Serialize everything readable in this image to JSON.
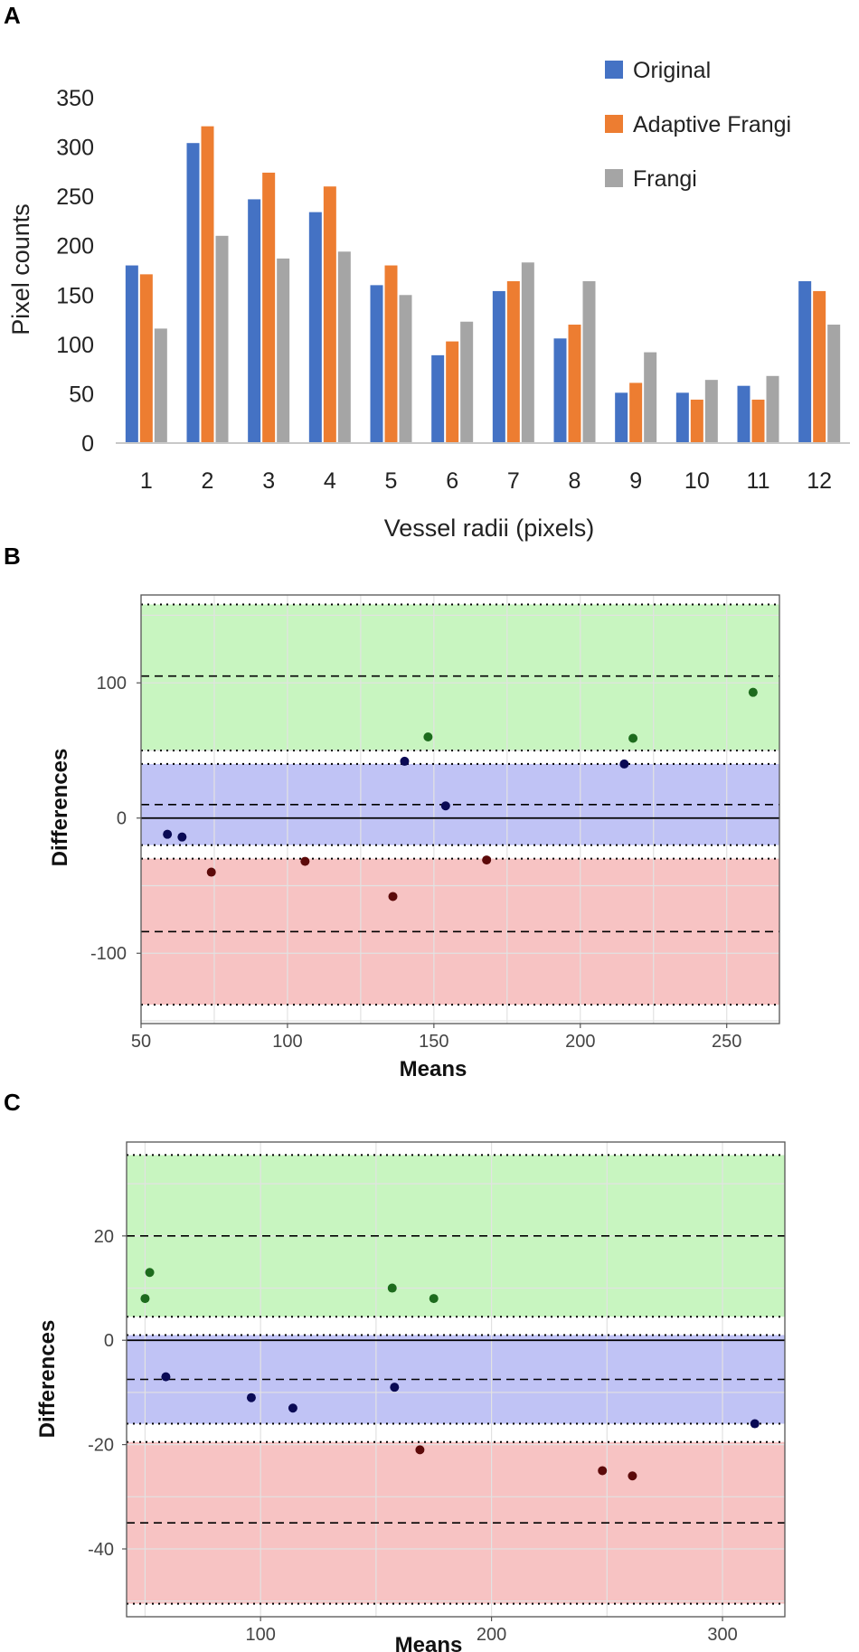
{
  "chart_data": [
    {
      "panel": "A",
      "type": "bar",
      "title": "",
      "xlabel": "Vessel radii (pixels)",
      "ylabel": "Pixel counts",
      "categories": [
        "1",
        "2",
        "3",
        "4",
        "5",
        "6",
        "7",
        "8",
        "9",
        "10",
        "11",
        "12"
      ],
      "ylim": [
        0,
        350
      ],
      "yticks": [
        0,
        50,
        100,
        150,
        200,
        250,
        300,
        350
      ],
      "grid": false,
      "legend_position": "top-right",
      "series": [
        {
          "name": "Original",
          "color": "#4472C4",
          "values": [
            180,
            304,
            247,
            234,
            160,
            89,
            154,
            106,
            51,
            51,
            58,
            164
          ]
        },
        {
          "name": "Adaptive Frangi",
          "color": "#ED7D31",
          "values": [
            171,
            321,
            274,
            260,
            180,
            103,
            164,
            120,
            61,
            44,
            44,
            154
          ]
        },
        {
          "name": "Frangi",
          "color": "#A5A5A5",
          "values": [
            116,
            210,
            187,
            194,
            150,
            123,
            183,
            164,
            92,
            64,
            68,
            120
          ]
        }
      ]
    },
    {
      "panel": "B",
      "type": "scatter",
      "title": "",
      "xlabel": "Means",
      "ylabel": "Differences",
      "xlim": [
        50,
        268
      ],
      "ylim": [
        -152,
        165
      ],
      "xticks": [
        50,
        100,
        150,
        200,
        250
      ],
      "yticks": [
        -100,
        0,
        100
      ],
      "grid": true,
      "bands": [
        {
          "name": "upper",
          "color": "#c8f5c0",
          "from": 50,
          "to": 158,
          "center": 105
        },
        {
          "name": "middle",
          "color": "#c0c3f5",
          "from": -20,
          "to": 40,
          "center": 10
        },
        {
          "name": "lower",
          "color": "#f7c3c3",
          "from": -138,
          "to": -30,
          "center": -84
        }
      ],
      "zero_line": 0,
      "series": [
        {
          "name": "upper",
          "color": "#1d6b1d",
          "points": [
            [
              148,
              60
            ],
            [
              218,
              59
            ],
            [
              259,
              93
            ]
          ]
        },
        {
          "name": "middle",
          "color": "#0a0a55",
          "points": [
            [
              59,
              -12
            ],
            [
              64,
              -14
            ],
            [
              140,
              42
            ],
            [
              154,
              9
            ],
            [
              215,
              40
            ]
          ]
        },
        {
          "name": "lower",
          "color": "#5c0a0a",
          "points": [
            [
              74,
              -40
            ],
            [
              106,
              -32
            ],
            [
              136,
              -58
            ],
            [
              168,
              -31
            ]
          ]
        }
      ]
    },
    {
      "panel": "C",
      "type": "scatter",
      "title": "",
      "xlabel": "Means",
      "ylabel": "Differences",
      "xlim": [
        42,
        327
      ],
      "ylim": [
        -53,
        38
      ],
      "xticks": [
        100,
        200,
        300
      ],
      "yticks": [
        -40,
        -20,
        0,
        20
      ],
      "grid": true,
      "bands": [
        {
          "name": "upper",
          "color": "#c8f5c0",
          "from": 4.5,
          "to": 35.5,
          "center": 20
        },
        {
          "name": "middle",
          "color": "#c0c3f5",
          "from": -16,
          "to": 1,
          "center": -7.5
        },
        {
          "name": "lower",
          "color": "#f7c3c3",
          "from": -50.5,
          "to": -19.5,
          "center": -35
        }
      ],
      "zero_line": 0,
      "series": [
        {
          "name": "upper",
          "color": "#1d6b1d",
          "points": [
            [
              50,
              8
            ],
            [
              52,
              13
            ],
            [
              157,
              10
            ],
            [
              175,
              8
            ]
          ]
        },
        {
          "name": "middle",
          "color": "#0a0a55",
          "points": [
            [
              59,
              -7
            ],
            [
              96,
              -11
            ],
            [
              114,
              -13
            ],
            [
              158,
              -9
            ],
            [
              314,
              -16
            ]
          ]
        },
        {
          "name": "lower",
          "color": "#5c0a0a",
          "points": [
            [
              169,
              -21
            ],
            [
              248,
              -25
            ],
            [
              261,
              -26
            ]
          ]
        }
      ]
    }
  ]
}
